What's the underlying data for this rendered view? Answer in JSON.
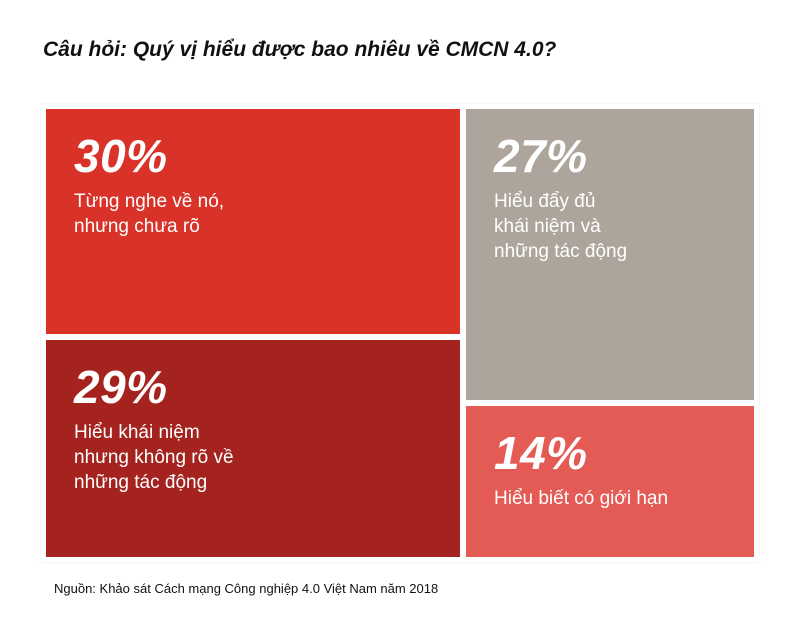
{
  "title": "Câu hỏi: Quý vị hiểu được bao nhiêu về CMCN 4.0?",
  "source": "Nguồn: Khảo sát Cách mạng Công nghiệp 4.0 Việt Nam năm 2018",
  "chart_data": {
    "type": "treemap",
    "title": "Câu hỏi: Quý vị hiểu được bao nhiêu về CMCN 4.0?",
    "unit": "%",
    "items": [
      {
        "value": 30,
        "value_label": "30%",
        "label": "Từng nghe về nó,\nnhưng chưa rõ",
        "color": "#D93229"
      },
      {
        "value": 29,
        "value_label": "29%",
        "label": "Hiểu khái niệm\nnhưng không rõ về\nnhững tác động",
        "color": "#A4231F"
      },
      {
        "value": 27,
        "value_label": "27%",
        "label": "Hiểu đẩy đủ\nkhái niệm và\nnhững tác động",
        "color": "#ADA59C"
      },
      {
        "value": 14,
        "value_label": "14%",
        "label": "Hiểu biết có giới hạn",
        "color": "#E45B55"
      }
    ]
  }
}
